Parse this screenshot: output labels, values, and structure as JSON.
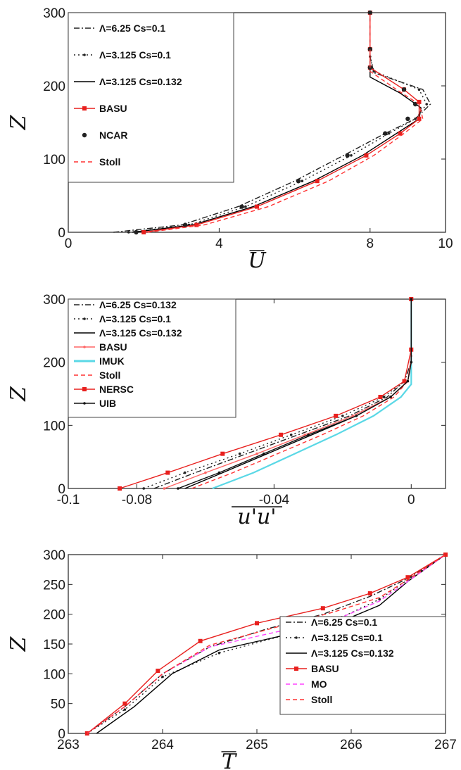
{
  "chart_data": [
    {
      "type": "line",
      "xlabel": "U",
      "xlabel_overline": true,
      "ylabel": "Z",
      "xlim": [
        0,
        10
      ],
      "ylim": [
        0,
        300
      ],
      "xticks": [
        0,
        4,
        8,
        10
      ],
      "yticks": [
        0,
        100,
        200,
        300
      ],
      "grid": false,
      "legend": "top-left",
      "series": [
        {
          "name": "Λ=6.25 Cs=0.1",
          "color": "#222222",
          "style": "dashdot",
          "marker": "none",
          "x": [
            1.2,
            3.0,
            4.5,
            6.0,
            7.3,
            8.4,
            9.2,
            9.6,
            9.4,
            8.1,
            8.0,
            8.0
          ],
          "y": [
            0,
            10,
            35,
            70,
            105,
            135,
            155,
            175,
            195,
            218,
            240,
            300
          ]
        },
        {
          "name": "Λ=3.125 Cs=0.1",
          "color": "#222222",
          "style": "dotted",
          "marker": "dot",
          "x": [
            1.6,
            3.2,
            4.7,
            6.2,
            7.5,
            8.5,
            9.2,
            9.5,
            9.3,
            8.1,
            8.0,
            8.0
          ],
          "y": [
            0,
            10,
            35,
            70,
            105,
            135,
            155,
            175,
            195,
            220,
            240,
            300
          ]
        },
        {
          "name": "Λ=3.125 Cs=0.132",
          "color": "#000000",
          "style": "solid",
          "marker": "none",
          "x": [
            1.7,
            3.3,
            4.9,
            6.5,
            7.8,
            8.7,
            9.3,
            9.35,
            8.8,
            8.0,
            8.0,
            8.0
          ],
          "y": [
            0,
            10,
            35,
            70,
            105,
            135,
            155,
            170,
            190,
            212,
            240,
            300
          ]
        },
        {
          "name": "BASU",
          "color": "#e8201e",
          "style": "solid",
          "marker": "square",
          "x": [
            2.0,
            3.4,
            5.0,
            6.6,
            7.9,
            8.8,
            9.3,
            9.3,
            8.9,
            8.0,
            8.0,
            8.0
          ],
          "y": [
            0,
            10,
            35,
            70,
            105,
            135,
            155,
            178,
            195,
            225,
            250,
            300
          ]
        },
        {
          "name": "NCAR",
          "color": "#222222",
          "style": "none",
          "marker": "circle",
          "x": [
            1.8,
            3.1,
            4.6,
            6.1,
            7.4,
            8.4,
            9.0,
            9.2,
            8.9,
            8.0,
            8.0,
            8.0
          ],
          "y": [
            0,
            10,
            35,
            70,
            105,
            135,
            155,
            175,
            195,
            225,
            250,
            300
          ]
        },
        {
          "name": "Stoll",
          "color": "#ff3333",
          "style": "dashed",
          "marker": "none",
          "x": [
            2.1,
            3.6,
            5.3,
            6.9,
            8.1,
            8.9,
            9.4,
            9.3,
            8.7,
            8.0,
            8.0,
            8.0
          ],
          "y": [
            0,
            10,
            35,
            70,
            105,
            135,
            155,
            175,
            195,
            220,
            250,
            300
          ]
        }
      ]
    },
    {
      "type": "line",
      "xlabel": "u'u'",
      "xlabel_overline": true,
      "ylabel": "Z",
      "xlim": [
        -0.1,
        0.01
      ],
      "ylim": [
        0,
        300
      ],
      "xticks": [
        -0.1,
        -0.08,
        -0.04,
        0
      ],
      "xticklabels": [
        "-0.1",
        "-0.08",
        "-0.04",
        "0"
      ],
      "yticks": [
        0,
        100,
        200,
        300
      ],
      "grid": false,
      "legend": "top-left",
      "series": [
        {
          "name": "Λ=6.25 Cs=0.132",
          "color": "#222222",
          "style": "dashdot",
          "marker": "none",
          "x": [
            -0.075,
            -0.063,
            -0.048,
            -0.033,
            -0.018,
            -0.007,
            -0.002,
            0.0,
            0.0
          ],
          "y": [
            0,
            25,
            55,
            85,
            115,
            145,
            170,
            200,
            300
          ]
        },
        {
          "name": "Λ=3.125 Cs=0.1",
          "color": "#222222",
          "style": "dotted",
          "marker": "dot",
          "x": [
            -0.078,
            -0.066,
            -0.05,
            -0.035,
            -0.02,
            -0.008,
            -0.002,
            0.0,
            0.0
          ],
          "y": [
            0,
            25,
            55,
            85,
            115,
            145,
            170,
            200,
            300
          ]
        },
        {
          "name": "Λ=3.125 Cs=0.132",
          "color": "#000000",
          "style": "solid",
          "marker": "none",
          "x": [
            -0.066,
            -0.055,
            -0.042,
            -0.029,
            -0.016,
            -0.006,
            -0.001,
            0.0,
            0.0
          ],
          "y": [
            0,
            25,
            55,
            85,
            115,
            145,
            170,
            200,
            300
          ]
        },
        {
          "name": "BASU",
          "color": "#ff6666",
          "style": "solid",
          "marker": "dot",
          "x": [
            -0.072,
            -0.06,
            -0.045,
            -0.031,
            -0.017,
            -0.006,
            -0.001,
            0.0,
            0.0
          ],
          "y": [
            0,
            25,
            55,
            85,
            115,
            145,
            170,
            210,
            300
          ]
        },
        {
          "name": "IMUK",
          "color": "#5ad8e6",
          "style": "solid",
          "marker": "none",
          "x": [
            -0.058,
            -0.046,
            -0.034,
            -0.022,
            -0.011,
            -0.003,
            0.0,
            0.0,
            0.0
          ],
          "y": [
            0,
            25,
            55,
            85,
            115,
            145,
            165,
            200,
            300
          ]
        },
        {
          "name": "Stoll",
          "color": "#ff3333",
          "style": "dashed",
          "marker": "none",
          "x": [
            -0.064,
            -0.052,
            -0.039,
            -0.026,
            -0.014,
            -0.005,
            -0.001,
            0.0,
            0.0
          ],
          "y": [
            0,
            25,
            55,
            85,
            115,
            145,
            170,
            200,
            300
          ]
        },
        {
          "name": "NERSC",
          "color": "#e8201e",
          "style": "solid",
          "marker": "square",
          "x": [
            -0.085,
            -0.071,
            -0.055,
            -0.038,
            -0.022,
            -0.009,
            -0.002,
            0.0,
            0.0
          ],
          "y": [
            0,
            25,
            55,
            85,
            115,
            145,
            170,
            220,
            300
          ]
        },
        {
          "name": "UIB",
          "color": "#111111",
          "style": "solid",
          "marker": "dot",
          "x": [
            -0.068,
            -0.056,
            -0.043,
            -0.03,
            -0.016,
            -0.006,
            -0.001,
            0.0,
            0.0
          ],
          "y": [
            0,
            25,
            55,
            85,
            115,
            145,
            170,
            200,
            300
          ]
        }
      ]
    },
    {
      "type": "line",
      "xlabel": "T",
      "xlabel_overline": true,
      "ylabel": "Z",
      "xlim": [
        263,
        267
      ],
      "ylim": [
        0,
        300
      ],
      "xticks": [
        263,
        264,
        265,
        266,
        267
      ],
      "yticks": [
        0,
        50,
        100,
        150,
        200,
        250,
        300
      ],
      "grid": false,
      "legend": "bottom-right",
      "series": [
        {
          "name": "Λ=6.25 Cs=0.1",
          "color": "#222222",
          "style": "dashdot",
          "marker": "none",
          "x": [
            263.2,
            263.6,
            264.0,
            264.5,
            265.1,
            265.7,
            266.2,
            266.6,
            267.0
          ],
          "y": [
            0,
            45,
            100,
            145,
            175,
            200,
            230,
            260,
            300
          ]
        },
        {
          "name": "Λ=3.125 Cs=0.1",
          "color": "#222222",
          "style": "dotted",
          "marker": "dot",
          "x": [
            263.2,
            263.6,
            264.0,
            264.6,
            265.3,
            265.9,
            266.3,
            266.6,
            267.0
          ],
          "y": [
            0,
            40,
            95,
            135,
            165,
            195,
            225,
            258,
            300
          ]
        },
        {
          "name": "Λ=3.125 Cs=0.132",
          "color": "#000000",
          "style": "solid",
          "marker": "none",
          "x": [
            263.3,
            263.7,
            264.1,
            264.6,
            265.3,
            266.0,
            266.3,
            266.6,
            267.0
          ],
          "y": [
            0,
            45,
            100,
            140,
            165,
            195,
            215,
            255,
            300
          ]
        },
        {
          "name": "BASU",
          "color": "#e8201e",
          "style": "solid",
          "marker": "square",
          "x": [
            263.2,
            263.6,
            263.95,
            264.4,
            265.0,
            265.7,
            266.2,
            266.6,
            267.0
          ],
          "y": [
            0,
            50,
            105,
            155,
            185,
            210,
            235,
            262,
            300
          ]
        },
        {
          "name": "MO",
          "color": "#ff44ff",
          "style": "dashed",
          "marker": "none",
          "x": [
            263.2,
            263.6,
            264.0,
            264.5,
            265.2,
            265.9,
            266.3,
            266.6,
            267.0
          ],
          "y": [
            0,
            45,
            100,
            145,
            170,
            195,
            222,
            255,
            300
          ]
        },
        {
          "name": "Stoll",
          "color": "#ff3333",
          "style": "dashed",
          "marker": "none",
          "x": [
            263.2,
            263.6,
            264.0,
            264.5,
            265.2,
            265.8,
            266.3,
            266.6,
            267.0
          ],
          "y": [
            0,
            45,
            100,
            148,
            178,
            203,
            228,
            258,
            300
          ]
        }
      ]
    }
  ]
}
